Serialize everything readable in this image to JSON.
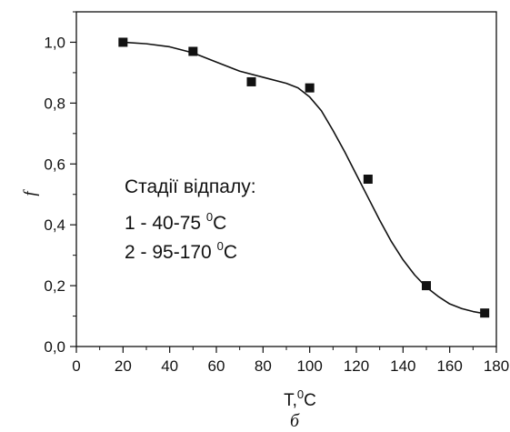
{
  "chart_data": {
    "type": "scatter",
    "xlabel": "T",
    "xlabel_unit_sup": "0",
    "xlabel_unit": "C",
    "ylabel": "f",
    "caption": "б",
    "xlim": [
      0,
      180
    ],
    "ylim": [
      0.0,
      1.1
    ],
    "x_ticks": [
      0,
      20,
      40,
      60,
      80,
      100,
      120,
      140,
      160,
      180
    ],
    "y_ticks": [
      0.0,
      0.2,
      0.4,
      0.6,
      0.8,
      1.0
    ],
    "x_tick_labels": [
      "0",
      "20",
      "40",
      "60",
      "80",
      "100",
      "120",
      "140",
      "160",
      "180"
    ],
    "y_tick_labels": [
      "0,0",
      "0,2",
      "0,4",
      "0,6",
      "0,8",
      "1,0"
    ],
    "grid": false,
    "series": [
      {
        "marker": "square",
        "x": [
          20,
          50,
          75,
          100,
          125,
          150,
          175
        ],
        "y": [
          1.0,
          0.97,
          0.87,
          0.85,
          0.55,
          0.2,
          0.11
        ]
      }
    ],
    "fit_curve": {
      "x": [
        20,
        30,
        40,
        50,
        60,
        70,
        80,
        90,
        95,
        100,
        105,
        110,
        115,
        120,
        125,
        130,
        135,
        140,
        145,
        150,
        155,
        160,
        165,
        170,
        175
      ],
      "y": [
        1.0,
        0.995,
        0.985,
        0.965,
        0.935,
        0.905,
        0.885,
        0.865,
        0.85,
        0.82,
        0.775,
        0.71,
        0.64,
        0.565,
        0.49,
        0.415,
        0.345,
        0.285,
        0.235,
        0.195,
        0.165,
        0.14,
        0.125,
        0.115,
        0.108
      ]
    },
    "annotation": {
      "title": "Стадії відпалу:",
      "lines": [
        {
          "text": "1 - 40-75 ",
          "sup": "0",
          "unit": "C"
        },
        {
          "text": "2 - 95-170 ",
          "sup": "0",
          "unit": "C"
        }
      ]
    }
  }
}
